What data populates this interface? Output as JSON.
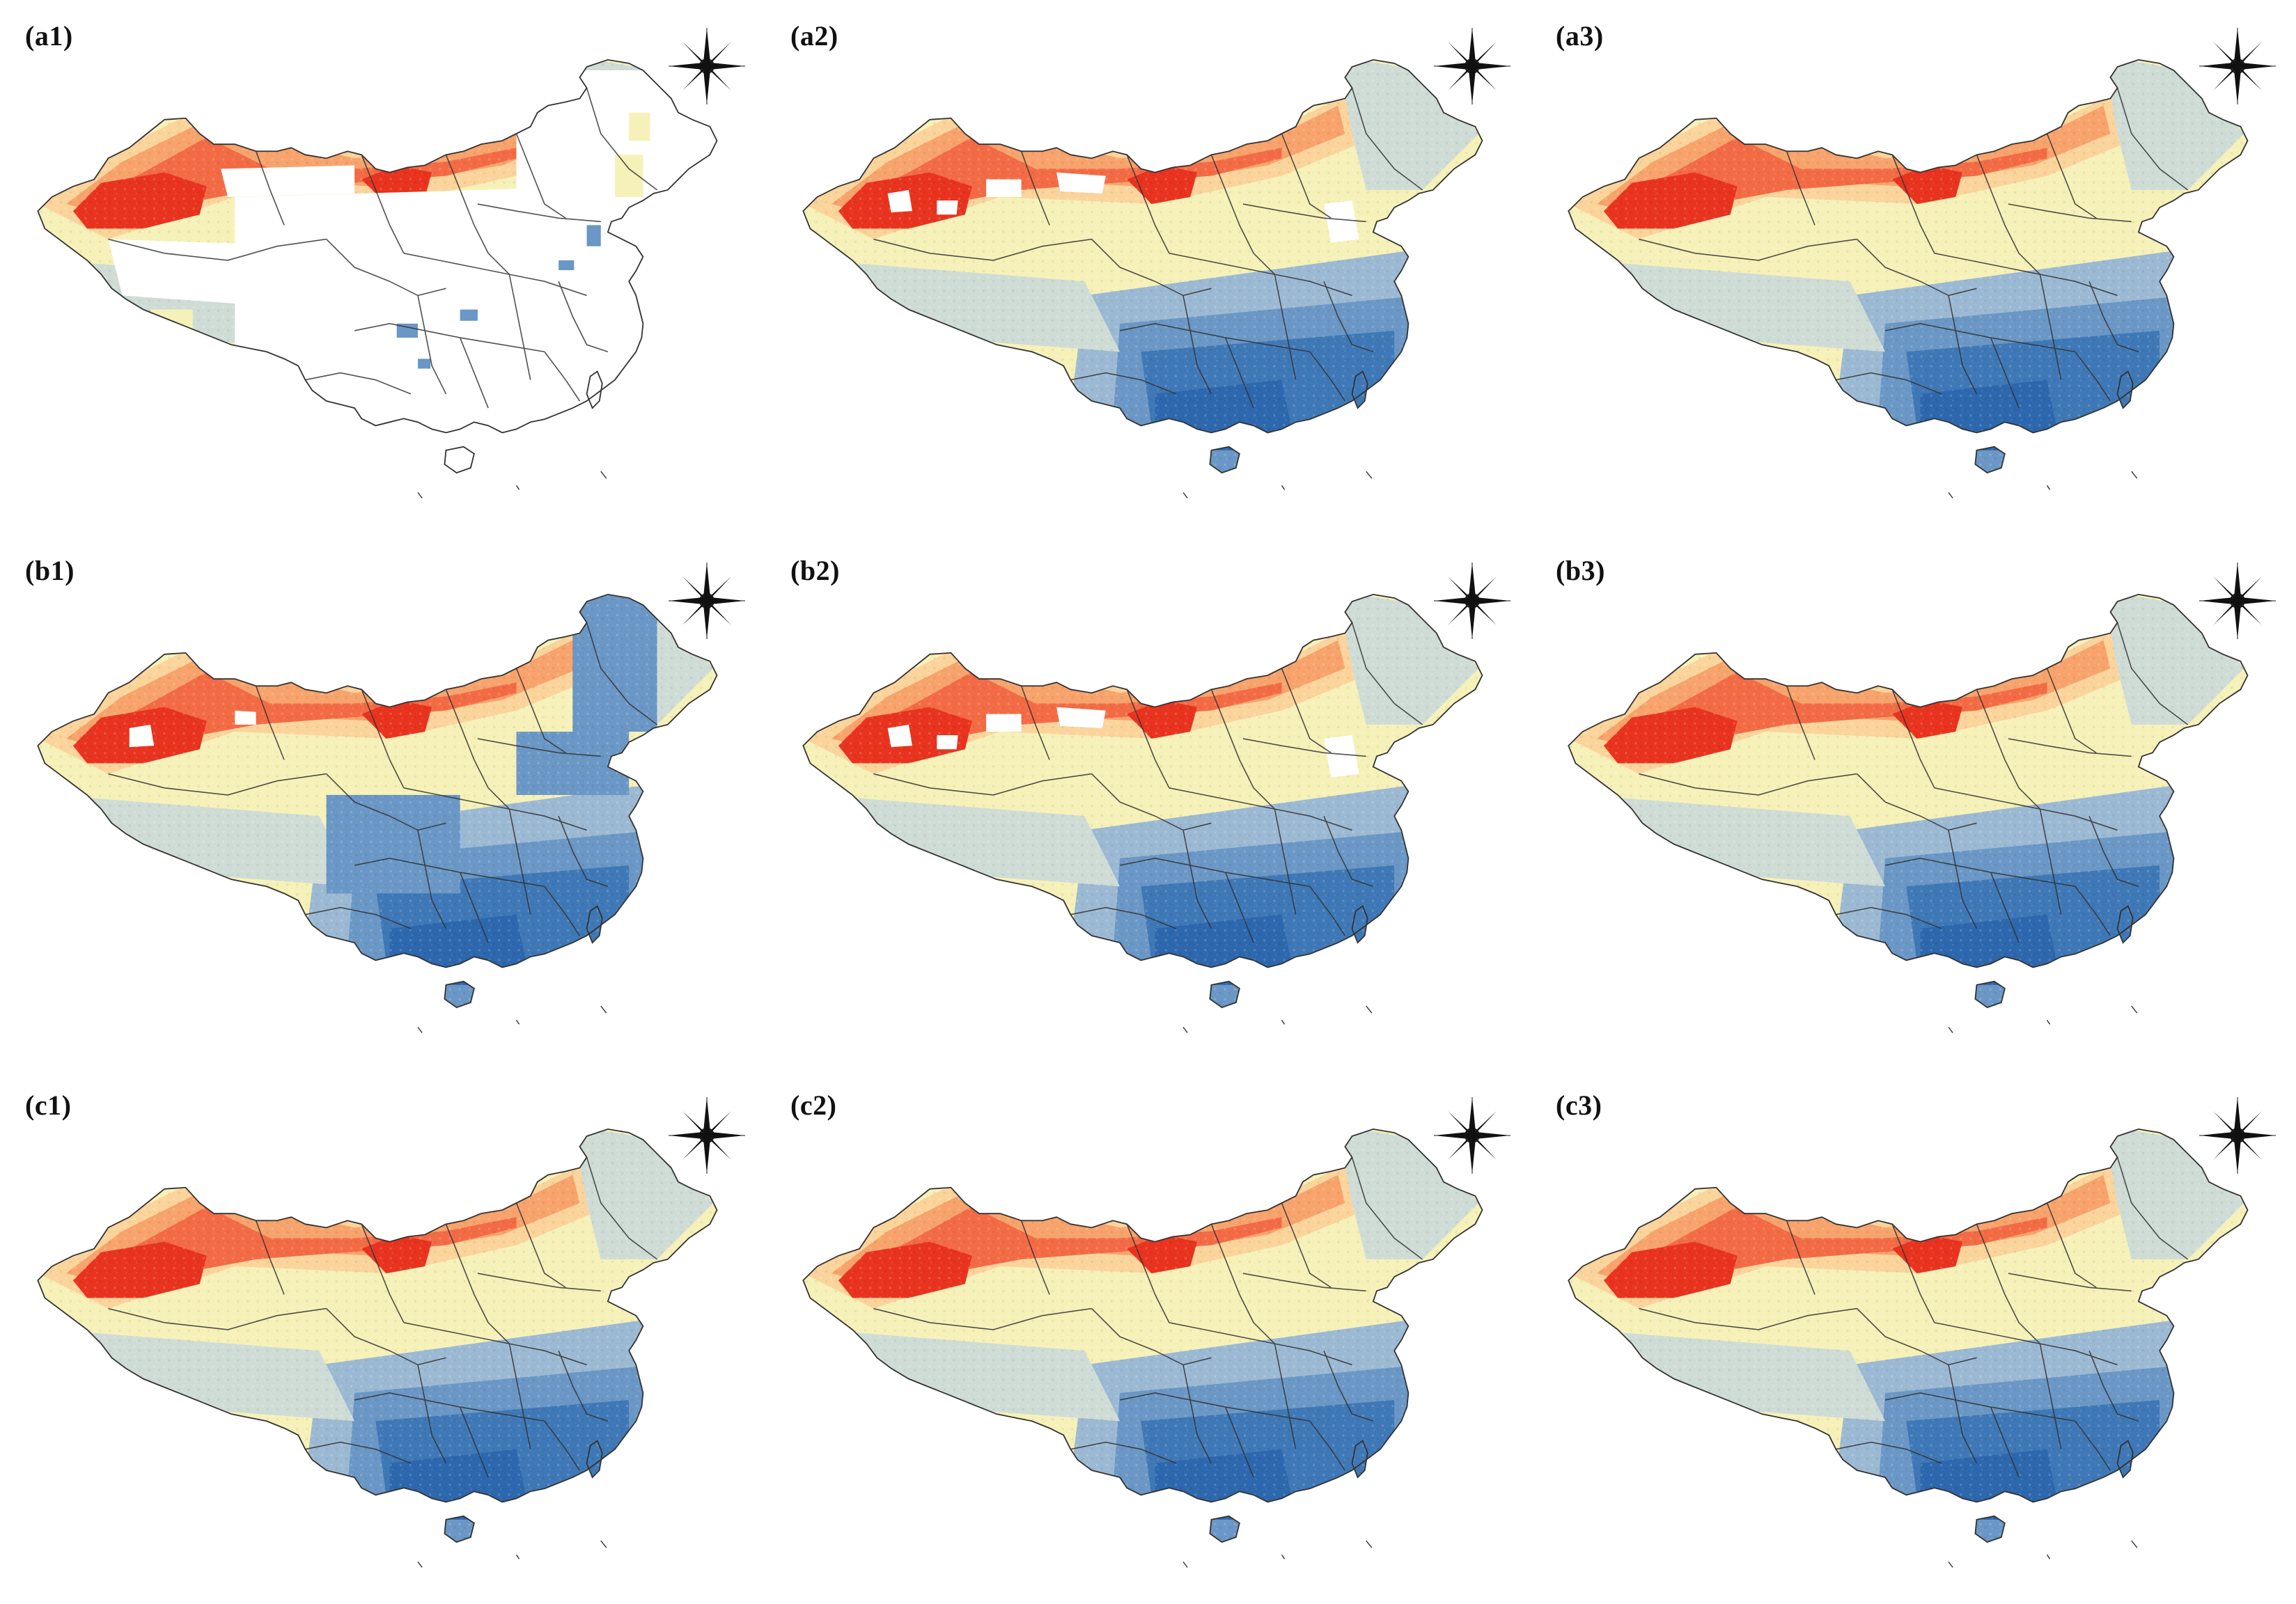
{
  "figure": {
    "panels": [
      {
        "id": "a1",
        "label": "(a1)",
        "coverage": "sparse"
      },
      {
        "id": "a2",
        "label": "(a2)",
        "coverage": "partial"
      },
      {
        "id": "a3",
        "label": "(a3)",
        "coverage": "full"
      },
      {
        "id": "b1",
        "label": "(b1)",
        "coverage": "full-blocky"
      },
      {
        "id": "b2",
        "label": "(b2)",
        "coverage": "partial"
      },
      {
        "id": "b3",
        "label": "(b3)",
        "coverage": "full"
      },
      {
        "id": "c1",
        "label": "(c1)",
        "coverage": "full"
      },
      {
        "id": "c2",
        "label": "(c2)",
        "coverage": "full"
      },
      {
        "id": "c3",
        "label": "(c3)",
        "coverage": "full"
      }
    ],
    "colors": {
      "dark_red": "#e8331f",
      "red": "#f36b45",
      "orange": "#f7a36b",
      "light_orange": "#fbd49b",
      "cream": "#f6f1b8",
      "pale_blue": "#cfdcd6",
      "light_blue": "#9cb9d3",
      "mid_blue": "#6a97c5",
      "blue": "#3f78b6",
      "deep_blue": "#2d67ad",
      "boundary": "#333333"
    },
    "icons": {
      "compass": "north-arrow-compass-rose-icon"
    }
  }
}
